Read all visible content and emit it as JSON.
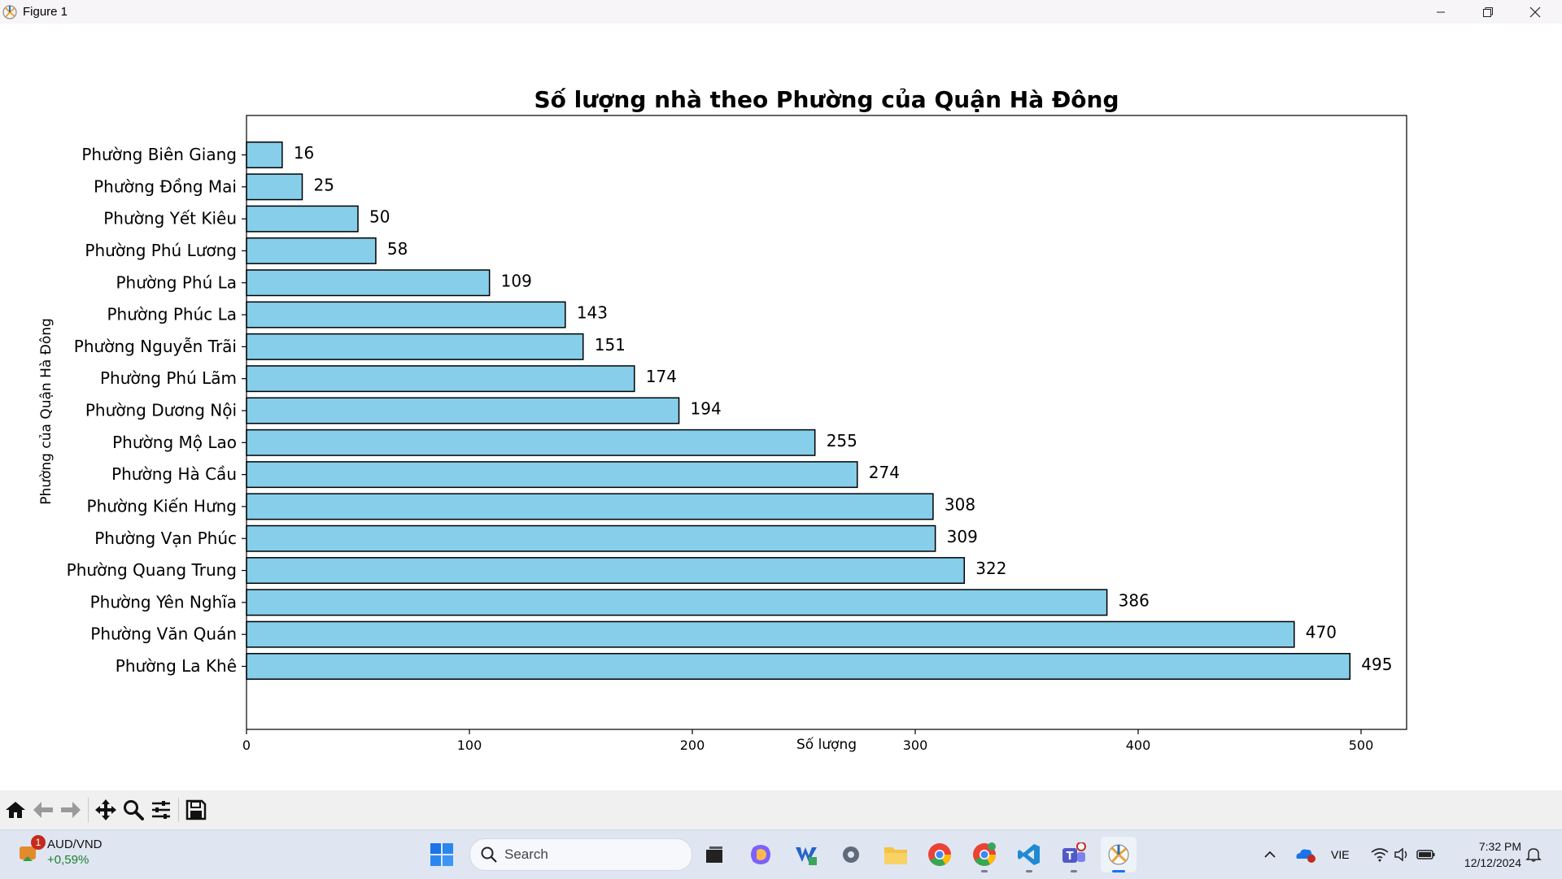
{
  "window": {
    "title": "Figure 1",
    "controls": [
      "minimize",
      "maximize",
      "close"
    ]
  },
  "chart_data": {
    "type": "bar",
    "orientation": "horizontal",
    "title": "Số lượng nhà theo Phường của Quận Hà Đông",
    "xlabel": "Số lượng",
    "ylabel": "Phường của Quận Hà Đông",
    "categories": [
      "Phường Biên Giang",
      "Phường Đồng Mai",
      "Phường Yết Kiêu",
      "Phường Phú Lương",
      "Phường Phú La",
      "Phường Phúc La",
      "Phường Nguyễn Trãi",
      "Phường Phú Lãm",
      "Phường Dương Nội",
      "Phường Mộ Lao",
      "Phường Hà Cầu",
      "Phường Kiến Hưng",
      "Phường Vạn Phúc",
      "Phường Quang Trung",
      "Phường Yên Nghĩa",
      "Phường Văn Quán",
      "Phường La Khê"
    ],
    "values": [
      16,
      25,
      50,
      58,
      109,
      143,
      151,
      174,
      194,
      255,
      274,
      308,
      309,
      322,
      386,
      470,
      495
    ],
    "xlim": [
      0,
      520
    ],
    "xticks": [
      0,
      100,
      200,
      300,
      400,
      500
    ],
    "bar_color": "#87ceeb",
    "edge_color": "#000000",
    "grid": false,
    "data_labels": true
  },
  "toolbar": {
    "buttons": [
      "home-icon",
      "back-icon",
      "forward-icon",
      "pan-icon",
      "zoom-icon",
      "configure-subplots-icon",
      "save-icon"
    ]
  },
  "taskbar": {
    "widget": {
      "pair": "AUD/VND",
      "change": "+0,59%",
      "badge": "1"
    },
    "search_placeholder": "Search",
    "apps": [
      "task-view",
      "copilot",
      "visual-studio",
      "settings",
      "file-explorer",
      "chrome",
      "chrome-profile",
      "vscode",
      "teams",
      "matplotlib-figure"
    ],
    "tray": {
      "language": "VIE"
    },
    "clock": {
      "time": "7:32 PM",
      "date": "12/12/2024"
    }
  },
  "colors": {
    "bar": "#87ceeb",
    "titlebar": "#f7f5f8",
    "toolbar": "#f0f0f0",
    "taskbar": "#dfe6f2"
  }
}
